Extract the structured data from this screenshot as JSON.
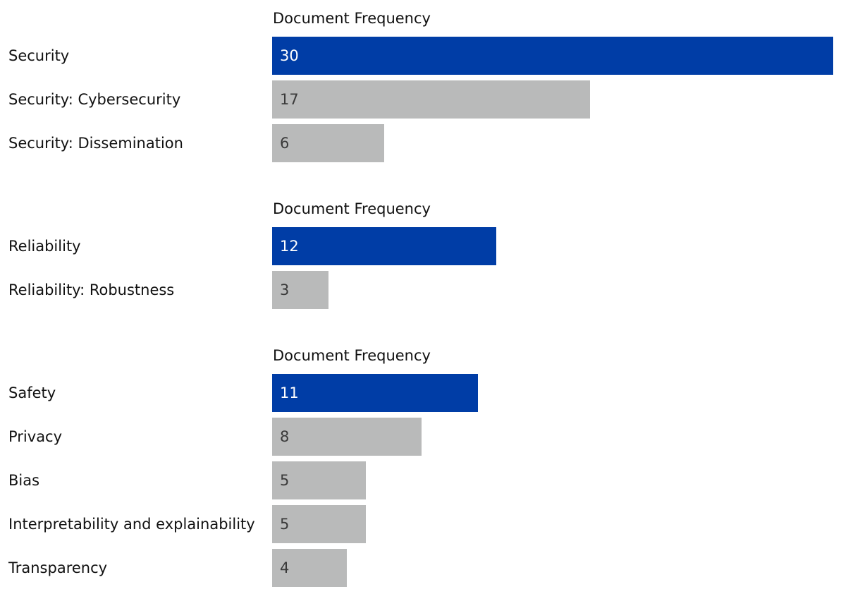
{
  "colors": {
    "highlight_bar": "#003da6",
    "default_bar": "#b9baba",
    "highlight_value_text": "#ffffff",
    "default_value_text": "#3a3a3a"
  },
  "chart_data": [
    {
      "type": "bar",
      "orientation": "horizontal",
      "xlabel": "Document Frequency",
      "categories": [
        "Security",
        "Security: Cybersecurity",
        "Security: Dissemination"
      ],
      "values": [
        30,
        17,
        6
      ],
      "highlighted": [
        true,
        false,
        false
      ],
      "data_labels": true,
      "grid": false
    },
    {
      "type": "bar",
      "orientation": "horizontal",
      "xlabel": "Document Frequency",
      "categories": [
        "Reliability",
        "Reliability: Robustness"
      ],
      "values": [
        12,
        3
      ],
      "highlighted": [
        true,
        false
      ],
      "data_labels": true,
      "grid": false
    },
    {
      "type": "bar",
      "orientation": "horizontal",
      "xlabel": "Document Frequency",
      "categories": [
        "Safety",
        "Privacy",
        "Bias",
        "Interpretability and explainability",
        "Transparency"
      ],
      "values": [
        11,
        8,
        5,
        5,
        4
      ],
      "highlighted": [
        true,
        false,
        false,
        false,
        false
      ],
      "data_labels": true,
      "grid": false
    }
  ]
}
